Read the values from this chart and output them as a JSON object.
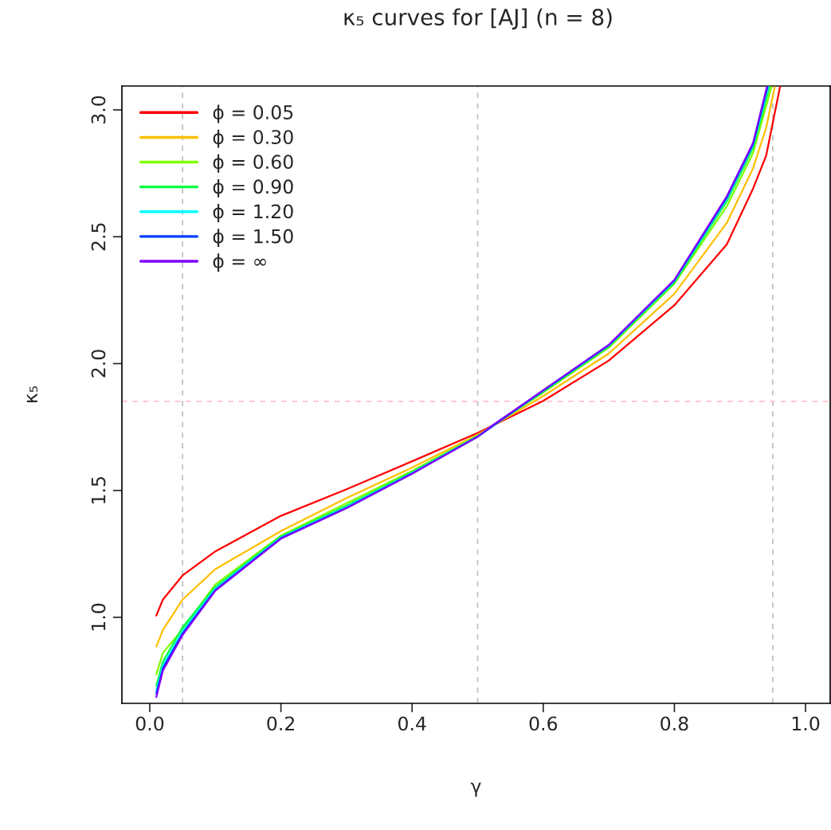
{
  "chart_data": {
    "type": "line",
    "title": "κ₅ curves for [AJ] (n = 8)",
    "xlabel": "γ",
    "ylabel": "κ₅",
    "xlim": [
      -0.0425,
      1.0376
    ],
    "ylim": [
      0.661,
      3.094
    ],
    "xticks": [
      {
        "value": 0,
        "label": "0.0"
      },
      0.2,
      0.4,
      0.6,
      0.8,
      {
        "value": 1,
        "label": "1.0"
      }
    ],
    "yticks": [
      {
        "value": 1,
        "label": "1.0"
      },
      1.5,
      {
        "value": 2,
        "label": "2.0"
      },
      2.5,
      {
        "value": 3,
        "label": "3.0"
      }
    ],
    "grid": false,
    "legend": "top left",
    "line_style": "solid",
    "marker": "none",
    "ref_lines": [
      {
        "axis": "x",
        "value": 0.05,
        "color": "#bebebe",
        "line_style": "dashed"
      },
      {
        "axis": "x",
        "value": 0.5,
        "color": "#bebebe",
        "line_style": "dashed"
      },
      {
        "axis": "x",
        "value": 0.95,
        "color": "#bebebe",
        "line_style": "dashed"
      },
      {
        "axis": "y",
        "value": 1.851,
        "color": "#ffc0cb",
        "line_style": "dashed"
      }
    ],
    "series": [
      {
        "name": "ϕ = 0.05",
        "color": "#ff0000",
        "x": [
          0.01,
          0.02,
          0.05,
          0.1,
          0.2,
          0.3,
          0.4,
          0.5,
          0.6,
          0.7,
          0.8,
          0.88,
          0.92,
          0.94,
          0.961
        ],
        "values": [
          1.007,
          1.07,
          1.165,
          1.26,
          1.4,
          1.505,
          1.615,
          1.727,
          1.853,
          2.012,
          2.23,
          2.47,
          2.69,
          2.82,
          3.09
        ]
      },
      {
        "name": "ϕ = 0.30",
        "color": "#ffbf00",
        "x": [
          0.01,
          0.02,
          0.05,
          0.1,
          0.2,
          0.3,
          0.4,
          0.5,
          0.6,
          0.7,
          0.8,
          0.88,
          0.92,
          0.94,
          0.953
        ],
        "values": [
          0.885,
          0.95,
          1.07,
          1.19,
          1.34,
          1.47,
          1.59,
          1.72,
          1.872,
          2.04,
          2.275,
          2.555,
          2.77,
          2.93,
          3.09
        ]
      },
      {
        "name": "ϕ = 0.60",
        "color": "#80ff00",
        "x": [
          0.01,
          0.02,
          0.05,
          0.1,
          0.2,
          0.3,
          0.4,
          0.5,
          0.6,
          0.7,
          0.8,
          0.88,
          0.92,
          0.948
        ],
        "values": [
          0.775,
          0.86,
          0.953,
          1.13,
          1.322,
          1.45,
          1.577,
          1.716,
          1.886,
          2.063,
          2.315,
          2.62,
          2.83,
          3.09
        ]
      },
      {
        "name": "ϕ = 0.90",
        "color": "#00ff40",
        "x": [
          0.01,
          0.02,
          0.05,
          0.1,
          0.2,
          0.3,
          0.4,
          0.5,
          0.6,
          0.7,
          0.8,
          0.88,
          0.92,
          0.945
        ],
        "values": [
          0.73,
          0.826,
          0.961,
          1.12,
          1.318,
          1.44,
          1.572,
          1.714,
          1.89,
          2.068,
          2.32,
          2.64,
          2.85,
          3.09
        ]
      },
      {
        "name": "ϕ = 1.20",
        "color": "#00ffff",
        "x": [
          0.01,
          0.02,
          0.05,
          0.1,
          0.2,
          0.3,
          0.4,
          0.5,
          0.6,
          0.7,
          0.8,
          0.88,
          0.92,
          0.943
        ],
        "values": [
          0.71,
          0.81,
          0.946,
          1.113,
          1.315,
          1.435,
          1.569,
          1.713,
          1.893,
          2.071,
          2.325,
          2.65,
          2.86,
          3.09
        ]
      },
      {
        "name": "ϕ = 1.50",
        "color": "#0040ff",
        "x": [
          0.01,
          0.02,
          0.05,
          0.1,
          0.2,
          0.3,
          0.4,
          0.5,
          0.6,
          0.7,
          0.8,
          0.88,
          0.92,
          0.942
        ],
        "values": [
          0.7,
          0.8,
          0.937,
          1.108,
          1.312,
          1.432,
          1.567,
          1.712,
          1.894,
          2.073,
          2.328,
          2.655,
          2.865,
          3.09
        ]
      },
      {
        "name": "ϕ = ∞",
        "color": "#8000ff",
        "x": [
          0.01,
          0.02,
          0.05,
          0.1,
          0.2,
          0.3,
          0.4,
          0.5,
          0.524,
          0.6,
          0.7,
          0.8,
          0.88,
          0.92,
          0.941
        ],
        "values": [
          0.686,
          0.79,
          0.93,
          1.105,
          1.31,
          1.43,
          1.566,
          1.712,
          1.759,
          1.895,
          2.074,
          2.33,
          2.66,
          2.87,
          3.09
        ]
      }
    ]
  }
}
